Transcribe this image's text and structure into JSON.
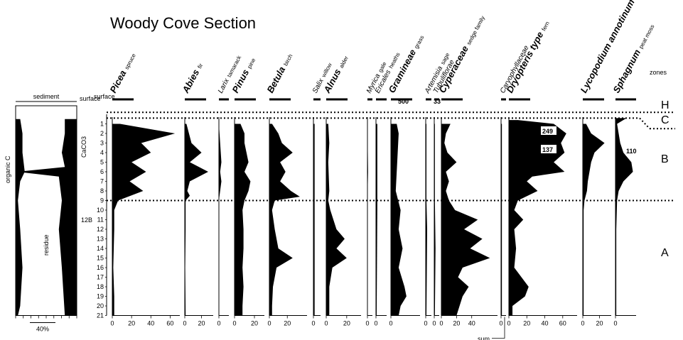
{
  "title": "Woody Cove Section",
  "chart_data": {
    "type": "area",
    "title": "Woody Cove Section",
    "depth_labels": [
      "surface",
      "1",
      "2",
      "3",
      "4",
      "5",
      "6",
      "7",
      "8",
      "9",
      "10",
      "11",
      "12",
      "13",
      "14",
      "15",
      "16",
      "17",
      "18",
      "19",
      "20",
      "21"
    ],
    "zones": [
      {
        "name": "H",
        "from": -0.2,
        "to": 0.4
      },
      {
        "name": "C",
        "from": 0.4,
        "to": 1.2
      },
      {
        "name": "B",
        "from": 1.2,
        "to": 9.0
      },
      {
        "name": "A",
        "from": 9.0,
        "to": 21.0
      }
    ],
    "sediment_panel": {
      "header": "sediment",
      "labels": [
        "organic C",
        "residue",
        "CaCO3"
      ],
      "scale_label": "40%",
      "marker_label": "12B",
      "organic_c": [
        [
          0.5,
          2
        ],
        [
          2,
          3
        ],
        [
          4,
          3
        ],
        [
          6,
          4
        ],
        [
          7,
          2
        ],
        [
          9,
          1
        ],
        [
          12,
          2
        ],
        [
          16,
          3
        ],
        [
          20,
          2
        ],
        [
          21,
          1
        ]
      ],
      "carbonate": [
        [
          0.5,
          4
        ],
        [
          2,
          4
        ],
        [
          4,
          5
        ],
        [
          5.5,
          4
        ],
        [
          6,
          20
        ],
        [
          6.5,
          6
        ],
        [
          9,
          5
        ],
        [
          12,
          6
        ],
        [
          16,
          5
        ],
        [
          21,
          4
        ]
      ]
    },
    "series": [
      {
        "name": "Picea",
        "common": "spruce",
        "ticks": [
          "0",
          "20",
          "40",
          "60"
        ],
        "max": 70,
        "values": [
          [
            1,
            8
          ],
          [
            2,
            65
          ],
          [
            3,
            30
          ],
          [
            4,
            40
          ],
          [
            5,
            20
          ],
          [
            6,
            35
          ],
          [
            7,
            18
          ],
          [
            8,
            32
          ],
          [
            9,
            6
          ],
          [
            10,
            2
          ],
          [
            12,
            2
          ],
          [
            16,
            1
          ],
          [
            19,
            2
          ],
          [
            21,
            2
          ]
        ]
      },
      {
        "name": "Abies",
        "common": "fir",
        "ticks": [
          "0",
          "20"
        ],
        "max": 34,
        "values": [
          [
            1,
            2
          ],
          [
            3,
            8
          ],
          [
            4,
            20
          ],
          [
            5,
            6
          ],
          [
            6,
            28
          ],
          [
            7,
            6
          ],
          [
            8,
            3
          ],
          [
            8.5,
            6
          ],
          [
            9,
            1
          ],
          [
            12,
            1
          ],
          [
            16,
            0.5
          ],
          [
            21,
            1
          ]
        ]
      },
      {
        "name": "Larix",
        "common": "tamarack",
        "ticks": [
          "0"
        ],
        "max": 8,
        "values": [
          [
            1,
            0
          ],
          [
            3,
            1
          ],
          [
            5,
            2
          ],
          [
            6,
            1
          ],
          [
            7,
            2
          ],
          [
            9,
            0
          ],
          [
            21,
            0
          ]
        ]
      },
      {
        "name": "Pinus",
        "common": "pine",
        "ticks": [
          "0",
          "20"
        ],
        "max": 30,
        "values": [
          [
            1,
            6
          ],
          [
            2,
            10
          ],
          [
            3,
            10
          ],
          [
            4,
            12
          ],
          [
            5,
            14
          ],
          [
            6,
            10
          ],
          [
            7,
            16
          ],
          [
            8,
            14
          ],
          [
            9,
            10
          ],
          [
            10,
            8
          ],
          [
            12,
            9
          ],
          [
            14,
            9
          ],
          [
            16,
            8
          ],
          [
            18,
            9
          ],
          [
            20,
            8
          ],
          [
            21,
            8
          ]
        ]
      },
      {
        "name": "Betula",
        "common": "birch",
        "ticks": [
          "0",
          "20"
        ],
        "max": 42,
        "values": [
          [
            1,
            3
          ],
          [
            2,
            10
          ],
          [
            3,
            14
          ],
          [
            4,
            26
          ],
          [
            5,
            12
          ],
          [
            6,
            18
          ],
          [
            7,
            12
          ],
          [
            8,
            24
          ],
          [
            8.6,
            34
          ],
          [
            9,
            6
          ],
          [
            10,
            3
          ],
          [
            12,
            6
          ],
          [
            14,
            10
          ],
          [
            15,
            26
          ],
          [
            16,
            8
          ],
          [
            18,
            4
          ],
          [
            20,
            3
          ],
          [
            21,
            3
          ]
        ]
      },
      {
        "name": "Salix",
        "common": "willow",
        "ticks": [
          "0"
        ],
        "max": 6,
        "values": [
          [
            1,
            1
          ],
          [
            5,
            1
          ],
          [
            9,
            1
          ],
          [
            12,
            1
          ],
          [
            16,
            1
          ],
          [
            21,
            1
          ]
        ]
      },
      {
        "name": "Alnus",
        "common": "alder",
        "ticks": [
          "0",
          "20"
        ],
        "max": 34,
        "values": [
          [
            1,
            2
          ],
          [
            3,
            3
          ],
          [
            5,
            2
          ],
          [
            8,
            3
          ],
          [
            9,
            2
          ],
          [
            10,
            4
          ],
          [
            12,
            10
          ],
          [
            13,
            18
          ],
          [
            14,
            10
          ],
          [
            15,
            20
          ],
          [
            16,
            6
          ],
          [
            18,
            3
          ],
          [
            21,
            3
          ]
        ]
      },
      {
        "name": "Myrica",
        "common": "gale",
        "ticks": [
          "0"
        ],
        "max": 8,
        "values": [
          [
            1,
            0
          ],
          [
            6,
            1
          ],
          [
            9,
            0
          ],
          [
            21,
            0
          ]
        ]
      },
      {
        "name": "Ericales",
        "common": "heaths",
        "ticks": [
          "0"
        ],
        "max": 8,
        "values": [
          [
            1,
            1
          ],
          [
            5,
            1
          ],
          [
            10,
            1
          ],
          [
            21,
            0.5
          ]
        ]
      },
      {
        "name": "Gramineae",
        "common": "grass",
        "ticks": [
          "0"
        ],
        "max": 30,
        "values": [
          [
            1,
            6
          ],
          [
            2,
            8
          ],
          [
            4,
            7
          ],
          [
            6,
            6
          ],
          [
            8,
            5
          ],
          [
            10,
            10
          ],
          [
            12,
            8
          ],
          [
            14,
            12
          ],
          [
            16,
            8
          ],
          [
            18,
            14
          ],
          [
            19,
            16
          ],
          [
            20,
            10
          ],
          [
            21,
            8
          ]
        ]
      },
      {
        "name": "Artemisia",
        "common": "sage",
        "ticks": [
          "0"
        ],
        "max": 8,
        "values": [
          [
            1,
            1
          ],
          [
            9,
            1
          ],
          [
            12,
            2
          ],
          [
            21,
            1
          ]
        ]
      },
      {
        "name": "Tubuliflorae",
        "common": "",
        "ticks": [
          "0"
        ],
        "max": 8,
        "values": [
          [
            1,
            1
          ],
          [
            9,
            1
          ],
          [
            14,
            2
          ],
          [
            21,
            1
          ]
        ]
      },
      {
        "name": "Cyperaceae",
        "common": "sedge family",
        "ticks": [
          "0",
          "20",
          "40"
        ],
        "max": 74,
        "values": [
          [
            1,
            12
          ],
          [
            2,
            6
          ],
          [
            3,
            4
          ],
          [
            4,
            8
          ],
          [
            5,
            20
          ],
          [
            6,
            6
          ],
          [
            7,
            10
          ],
          [
            8,
            6
          ],
          [
            9,
            10
          ],
          [
            10,
            18
          ],
          [
            11,
            48
          ],
          [
            12,
            30
          ],
          [
            13,
            54
          ],
          [
            14,
            38
          ],
          [
            15,
            64
          ],
          [
            16,
            28
          ],
          [
            17,
            22
          ],
          [
            18,
            36
          ],
          [
            19,
            28
          ],
          [
            20,
            24
          ],
          [
            21,
            20
          ]
        ]
      },
      {
        "name": "Caryophyllaceae",
        "common": "",
        "ticks": [
          "0"
        ],
        "max": 6,
        "values": [
          [
            1,
            1
          ],
          [
            9,
            1
          ],
          [
            16,
            1
          ],
          [
            21,
            1
          ]
        ]
      },
      {
        "name": "Dryopteris type",
        "common": "fern",
        "ticks": [
          "0",
          "20",
          "40",
          "60"
        ],
        "max": 76,
        "values": [
          [
            0.6,
            10
          ],
          [
            1,
            50
          ],
          [
            2,
            64
          ],
          [
            3,
            58
          ],
          [
            4,
            62
          ],
          [
            5,
            50
          ],
          [
            6,
            62
          ],
          [
            6.5,
            26
          ],
          [
            7,
            20
          ],
          [
            8,
            32
          ],
          [
            9,
            10
          ],
          [
            10,
            6
          ],
          [
            11,
            16
          ],
          [
            12,
            6
          ],
          [
            14,
            8
          ],
          [
            16,
            6
          ],
          [
            18,
            22
          ],
          [
            19,
            18
          ],
          [
            20,
            4
          ],
          [
            21,
            4
          ]
        ]
      },
      {
        "name": "Lycopodium annotinum",
        "common": "club-moss",
        "ticks": [
          "0",
          "20"
        ],
        "max": 34,
        "values": [
          [
            1,
            4
          ],
          [
            2,
            10
          ],
          [
            3,
            26
          ],
          [
            4,
            14
          ],
          [
            5,
            10
          ],
          [
            6,
            8
          ],
          [
            7,
            6
          ],
          [
            8,
            5
          ],
          [
            9,
            2
          ],
          [
            10,
            1
          ],
          [
            12,
            1
          ],
          [
            21,
            1
          ]
        ]
      },
      {
        "name": "Sphagnum",
        "common": "peat moss",
        "ticks": [
          "0"
        ],
        "max": 26,
        "values": [
          [
            0.4,
            14
          ],
          [
            1,
            2
          ],
          [
            2,
            4
          ],
          [
            3,
            6
          ],
          [
            4,
            10
          ],
          [
            5,
            20
          ],
          [
            6,
            22
          ],
          [
            7,
            10
          ],
          [
            8,
            4
          ],
          [
            9,
            2
          ],
          [
            12,
            1
          ],
          [
            21,
            1
          ]
        ]
      }
    ],
    "annotations": [
      "500",
      "33",
      "249",
      "137",
      "110",
      "sum"
    ]
  }
}
